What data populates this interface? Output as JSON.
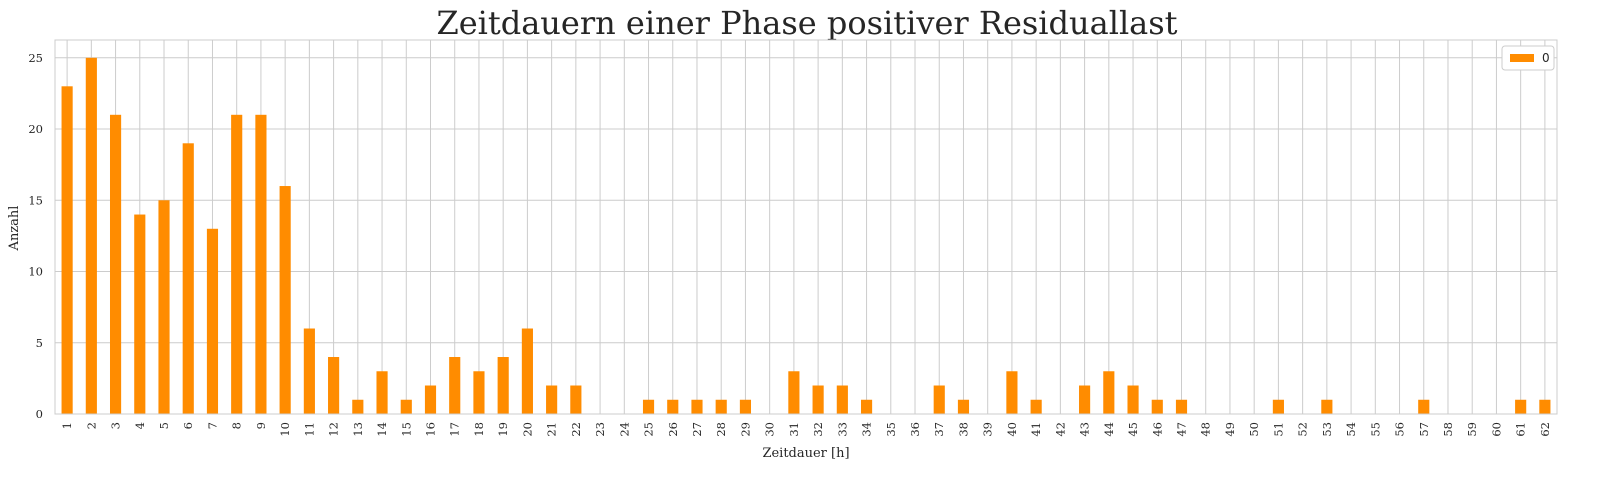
{
  "chart_data": {
    "type": "bar",
    "title": "Zeitdauern einer Phase positiver Residuallast",
    "xlabel": "Zeitdauer [h]",
    "ylabel": "Anzahl",
    "categories": [
      "1",
      "2",
      "3",
      "4",
      "5",
      "6",
      "7",
      "8",
      "9",
      "10",
      "11",
      "12",
      "13",
      "14",
      "15",
      "16",
      "17",
      "18",
      "19",
      "20",
      "21",
      "22",
      "23",
      "24",
      "25",
      "26",
      "27",
      "28",
      "29",
      "30",
      "31",
      "32",
      "33",
      "34",
      "35",
      "36",
      "37",
      "38",
      "39",
      "40",
      "41",
      "42",
      "43",
      "44",
      "45",
      "46",
      "47",
      "48",
      "49",
      "50",
      "51",
      "52",
      "53",
      "54",
      "55",
      "56",
      "57",
      "58",
      "59",
      "60",
      "61",
      "62"
    ],
    "series": [
      {
        "name": "0",
        "values": [
          23,
          25,
          21,
          14,
          15,
          19,
          13,
          21,
          21,
          16,
          6,
          4,
          1,
          3,
          1,
          2,
          4,
          3,
          4,
          6,
          2,
          2,
          0,
          0,
          1,
          1,
          1,
          1,
          1,
          0,
          3,
          2,
          2,
          1,
          0,
          0,
          2,
          1,
          0,
          3,
          1,
          0,
          2,
          3,
          2,
          1,
          1,
          0,
          0,
          0,
          1,
          0,
          1,
          0,
          0,
          0,
          1,
          0,
          0,
          0,
          1,
          1
        ]
      }
    ],
    "yticks": [
      0,
      5,
      10,
      15,
      20,
      25
    ],
    "ylim": [
      0,
      26.25
    ],
    "grid": true,
    "legend_position": "top-right",
    "bar_color": "#ff8c00"
  }
}
